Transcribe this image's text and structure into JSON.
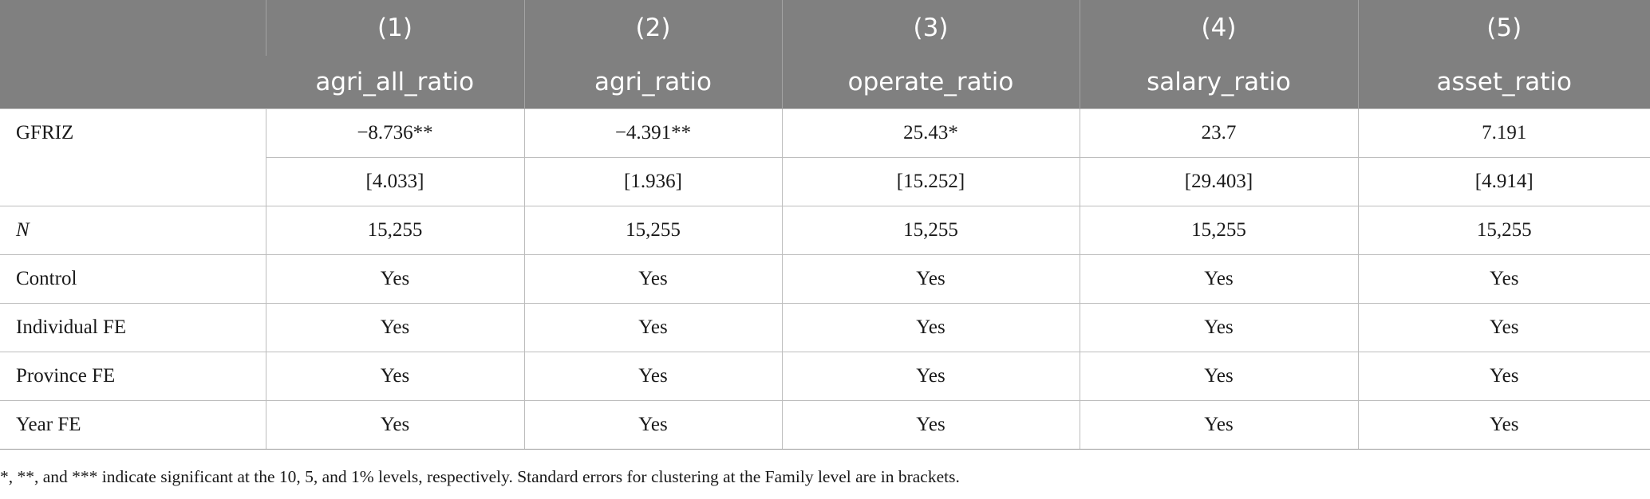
{
  "header": {
    "numbers": [
      "(1)",
      "(2)",
      "(3)",
      "(4)",
      "(5)"
    ],
    "variables": [
      "agri_all_ratio",
      "agri_ratio",
      "operate_ratio",
      "salary_ratio",
      "asset_ratio"
    ]
  },
  "rows": {
    "gfriz": {
      "label": "GFRIZ",
      "coef": [
        "−8.736**",
        "−4.391**",
        "25.43*",
        "23.7",
        "7.191"
      ],
      "se": [
        "[4.033]",
        "[1.936]",
        "[15.252]",
        "[29.403]",
        "[4.914]"
      ]
    },
    "n": {
      "label": "N",
      "values": [
        "15,255",
        "15,255",
        "15,255",
        "15,255",
        "15,255"
      ]
    },
    "control": {
      "label": "Control",
      "values": [
        "Yes",
        "Yes",
        "Yes",
        "Yes",
        "Yes"
      ]
    },
    "individual_fe": {
      "label": "Individual FE",
      "values": [
        "Yes",
        "Yes",
        "Yes",
        "Yes",
        "Yes"
      ]
    },
    "province_fe": {
      "label": "Province FE",
      "values": [
        "Yes",
        "Yes",
        "Yes",
        "Yes",
        "Yes"
      ]
    },
    "year_fe": {
      "label": "Year FE",
      "values": [
        "Yes",
        "Yes",
        "Yes",
        "Yes",
        "Yes"
      ]
    }
  },
  "footnote": "*, **, and *** indicate significant at the 10, 5, and 1% levels, respectively. Standard errors for clustering at the Family level are in brackets.",
  "colors": {
    "header_bg": "#808080",
    "header_text": "#ffffff",
    "grid": "#bdbdbd"
  }
}
